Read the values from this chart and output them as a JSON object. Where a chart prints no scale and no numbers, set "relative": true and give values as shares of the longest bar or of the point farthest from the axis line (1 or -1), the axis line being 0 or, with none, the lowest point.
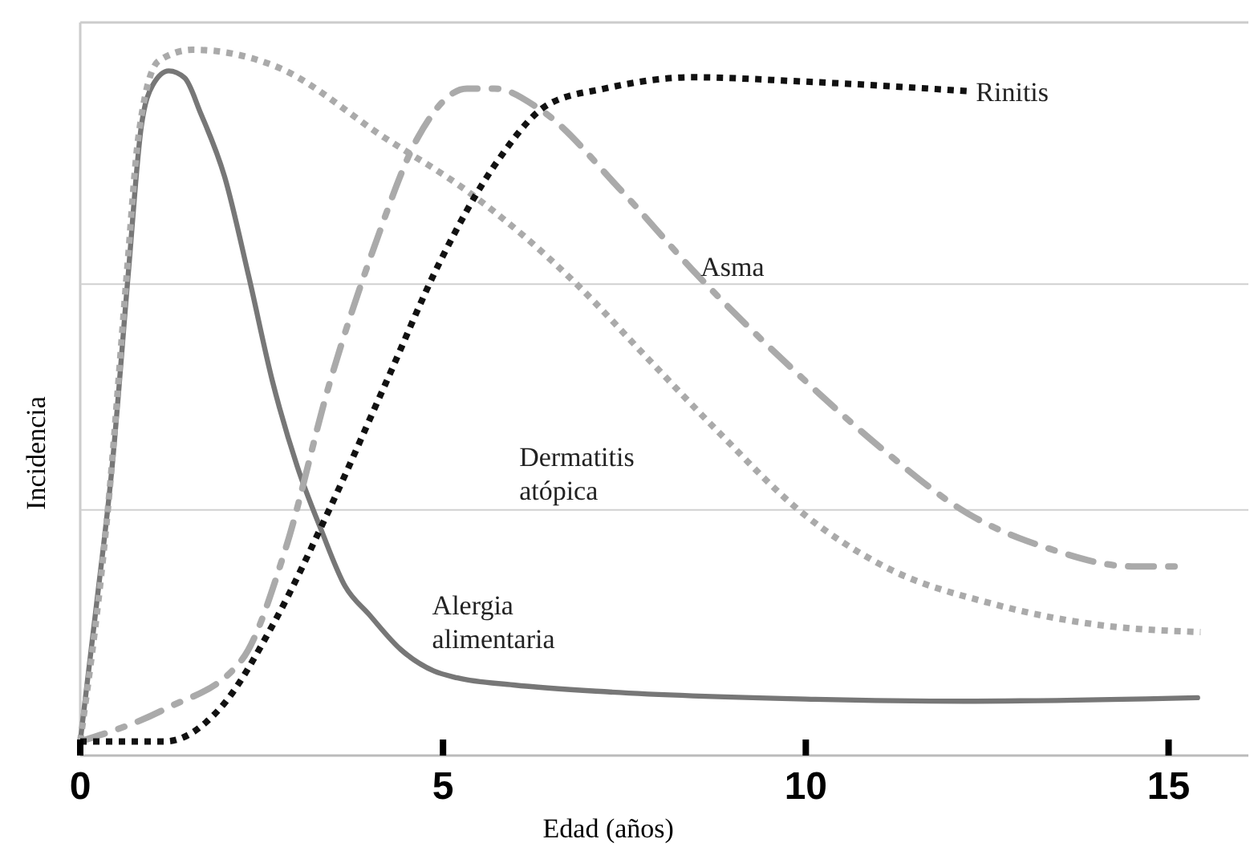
{
  "chart_data": {
    "type": "line",
    "relative": true,
    "xlabel": "Edad (años)",
    "ylabel": "Incidencia",
    "xlim": [
      0,
      16.1
    ],
    "xticks": [
      0,
      5,
      10,
      15
    ],
    "marker": "none",
    "ref_lines": [
      {
        "axis": "y",
        "value": 0.668,
        "color": "#d0d0d0"
      },
      {
        "axis": "y",
        "value": 0.348,
        "color": "#d0d0d0"
      }
    ],
    "series": [
      {
        "name": "Alergia alimentaria",
        "color": "#777777",
        "line_style": "solid",
        "x": [
          0,
          0.22,
          0.44,
          0.66,
          0.84,
          1.0,
          1.22,
          1.44,
          1.66,
          1.99,
          2.32,
          2.65,
          2.99,
          3.32,
          3.65,
          3.98,
          4.42,
          4.87,
          5.2,
          5.97,
          7.3,
          10,
          12.17,
          15.4
        ],
        "values": [
          0.02,
          0.21,
          0.41,
          0.68,
          0.89,
          0.95,
          0.97,
          0.96,
          0.91,
          0.82,
          0.68,
          0.53,
          0.41,
          0.32,
          0.24,
          0.2,
          0.15,
          0.12,
          0.11,
          0.1,
          0.09,
          0.08,
          0.077,
          0.082
        ]
      },
      {
        "name": "Dermatitis atópica",
        "color": "#aaaaaa",
        "line_style": "dotted",
        "x": [
          0,
          0.4,
          0.64,
          0.8,
          1.08,
          1.55,
          2.68,
          4.2,
          5.33,
          6.86,
          7.79,
          8.81,
          9.96,
          11.08,
          12.61,
          14.12,
          15.44
        ],
        "values": [
          0.02,
          0.37,
          0.68,
          0.875,
          0.984,
          1.0,
          0.977,
          0.875,
          0.8,
          0.666,
          0.566,
          0.457,
          0.343,
          0.268,
          0.214,
          0.184,
          0.175
        ]
      },
      {
        "name": "Asma",
        "color": "#aaaaaa",
        "line_style": "dashed",
        "x": [
          0,
          1.17,
          2.23,
          2.83,
          3.43,
          4.05,
          4.65,
          5.33,
          5.71,
          6.33,
          7.46,
          8.43,
          9.96,
          11.08,
          12.23,
          13.36,
          14.49,
          15.18
        ],
        "values": [
          0.02,
          0.066,
          0.136,
          0.293,
          0.525,
          0.72,
          0.875,
          0.945,
          0.945,
          0.916,
          0.8,
          0.689,
          0.534,
          0.432,
          0.343,
          0.293,
          0.268,
          0.268
        ]
      },
      {
        "name": "Rinitis",
        "color": "#111111",
        "line_style": "dotted",
        "x": [
          0,
          1.17,
          1.92,
          2.68,
          3.43,
          4.2,
          4.96,
          5.71,
          6.46,
          7.23,
          8.43,
          9.96,
          12.3
        ],
        "values": [
          0.02,
          0.02,
          0.066,
          0.19,
          0.348,
          0.525,
          0.7,
          0.836,
          0.923,
          0.945,
          0.961,
          0.955,
          0.941
        ]
      }
    ]
  }
}
